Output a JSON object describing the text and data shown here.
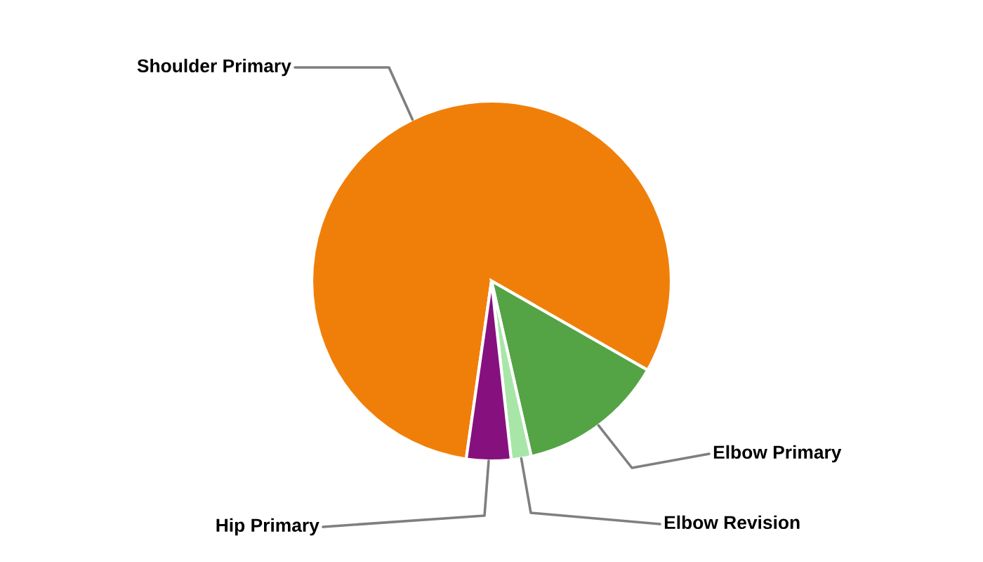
{
  "chart_data": {
    "type": "pie",
    "categories": [
      "Shoulder Primary",
      "Elbow Primary",
      "Elbow Revision",
      "Hip Primary"
    ],
    "values": [
      81.0,
      13.2,
      1.8,
      4.0
    ],
    "colors": [
      "#f07f09",
      "#54a345",
      "#a8e6a8",
      "#86117e"
    ],
    "legend": false
  }
}
